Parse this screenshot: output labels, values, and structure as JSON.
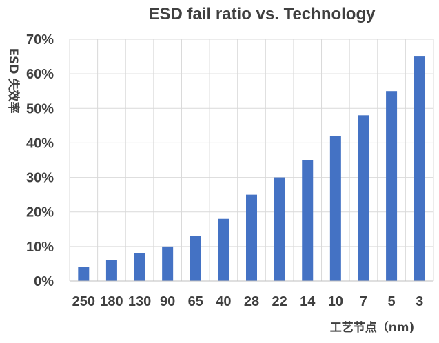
{
  "chart_data": {
    "type": "bar",
    "title": "ESD fail ratio vs. Technology",
    "xlabel": "工艺节点（nm)",
    "ylabel": "ESD 失效率",
    "categories": [
      "250",
      "180",
      "130",
      "90",
      "65",
      "40",
      "28",
      "22",
      "14",
      "10",
      "7",
      "5",
      "3"
    ],
    "series": [
      {
        "values": [
          4,
          6,
          8,
          10,
          13,
          18,
          25,
          30,
          35,
          42,
          48,
          55,
          65
        ]
      }
    ],
    "yunit": "%",
    "ylim": [
      0,
      70
    ],
    "yticks": [
      0,
      10,
      20,
      30,
      40,
      50,
      60,
      70
    ],
    "ytick_labels": [
      "0%",
      "10%",
      "20%",
      "30%",
      "40%",
      "50%",
      "60%",
      "70%"
    ],
    "grid": true,
    "bar_color": "#4472c4"
  }
}
